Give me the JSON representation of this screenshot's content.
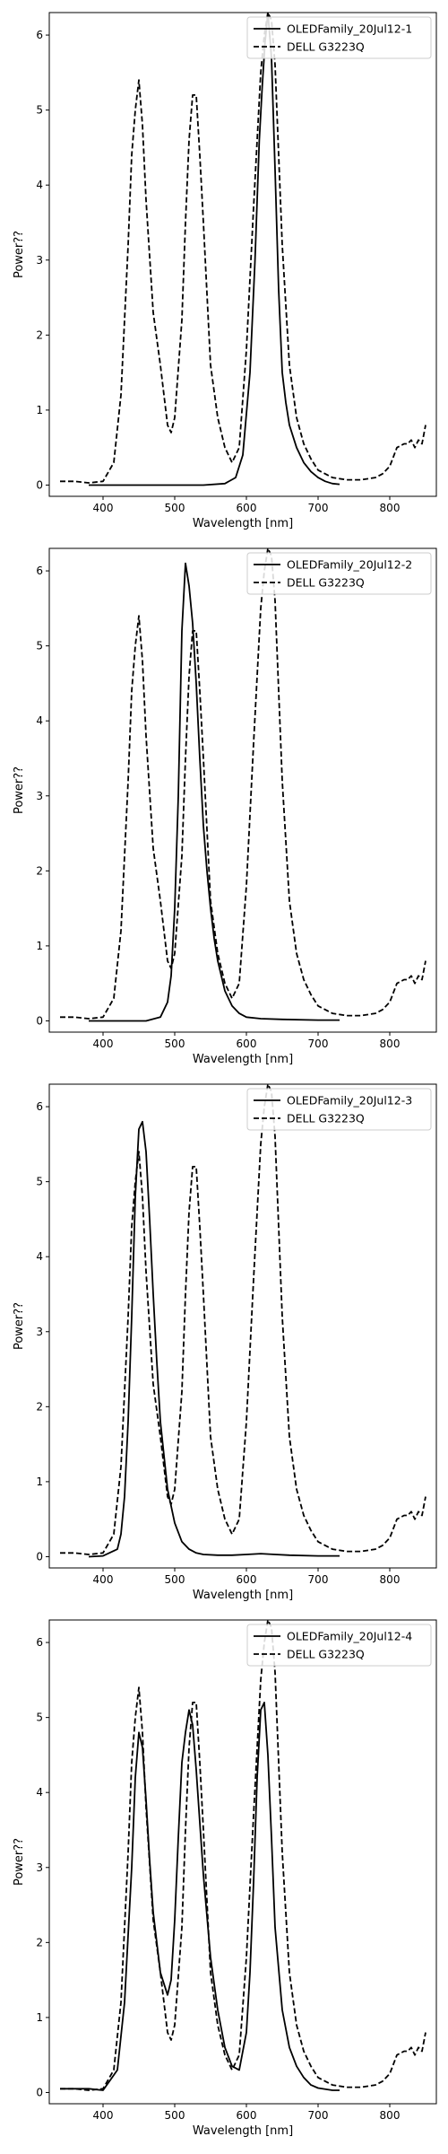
{
  "chart_data": [
    {
      "type": "line",
      "xlabel": "Wavelength [nm]",
      "ylabel": "Power??",
      "xlim": [
        325,
        865
      ],
      "ylim": [
        -0.15,
        6.3
      ],
      "xticks": [
        400,
        500,
        600,
        700,
        800
      ],
      "yticks": [
        0,
        1,
        2,
        3,
        4,
        5,
        6
      ],
      "legend_position": "top-right",
      "grid": false,
      "series": [
        {
          "name": "OLEDFamily_20Jul12-1",
          "style": "solid",
          "color": "#000000",
          "x": [
            380,
            420,
            460,
            500,
            540,
            570,
            585,
            595,
            605,
            612,
            618,
            622,
            626,
            630,
            635,
            640,
            645,
            650,
            655,
            660,
            670,
            680,
            690,
            700,
            710,
            720,
            730
          ],
          "y": [
            0,
            0,
            0,
            0,
            0,
            0.02,
            0.1,
            0.4,
            1.5,
            3.0,
            4.6,
            5.3,
            5.9,
            6.3,
            5.7,
            4.2,
            2.6,
            1.5,
            1.1,
            0.8,
            0.5,
            0.3,
            0.18,
            0.1,
            0.05,
            0.02,
            0.01
          ]
        },
        {
          "name": "DELL G3223Q",
          "style": "dashed",
          "color": "#000000",
          "x": [
            340,
            360,
            380,
            400,
            415,
            425,
            435,
            440,
            445,
            450,
            455,
            460,
            470,
            480,
            490,
            495,
            500,
            510,
            515,
            520,
            525,
            530,
            535,
            540,
            550,
            560,
            570,
            575,
            580,
            590,
            600,
            610,
            620,
            625,
            630,
            635,
            640,
            645,
            650,
            660,
            670,
            680,
            690,
            700,
            720,
            740,
            760,
            780,
            790,
            800,
            810,
            820,
            825,
            830,
            835,
            840,
            845,
            850
          ],
          "y": [
            0.05,
            0.05,
            0.03,
            0.05,
            0.3,
            1.2,
            3.2,
            4.4,
            5.0,
            5.4,
            4.8,
            3.8,
            2.3,
            1.6,
            0.8,
            0.7,
            0.9,
            2.2,
            3.5,
            4.6,
            5.2,
            5.2,
            4.4,
            3.5,
            1.6,
            0.9,
            0.5,
            0.4,
            0.3,
            0.5,
            1.8,
            3.7,
            5.5,
            6.0,
            6.3,
            6.2,
            5.6,
            4.4,
            3.2,
            1.6,
            0.9,
            0.55,
            0.35,
            0.2,
            0.1,
            0.07,
            0.07,
            0.1,
            0.15,
            0.25,
            0.5,
            0.55,
            0.55,
            0.6,
            0.5,
            0.6,
            0.55,
            0.8
          ]
        }
      ]
    },
    {
      "type": "line",
      "xlabel": "Wavelength [nm]",
      "ylabel": "Power??",
      "xlim": [
        325,
        865
      ],
      "ylim": [
        -0.15,
        6.3
      ],
      "xticks": [
        400,
        500,
        600,
        700,
        800
      ],
      "yticks": [
        0,
        1,
        2,
        3,
        4,
        5,
        6
      ],
      "legend_position": "top-right",
      "grid": false,
      "series": [
        {
          "name": "OLEDFamily_20Jul12-2",
          "style": "solid",
          "color": "#000000",
          "x": [
            380,
            420,
            460,
            480,
            490,
            495,
            500,
            505,
            510,
            515,
            520,
            525,
            530,
            535,
            540,
            545,
            550,
            555,
            560,
            570,
            580,
            590,
            600,
            620,
            650,
            700,
            730
          ],
          "y": [
            0,
            0,
            0,
            0.05,
            0.25,
            0.6,
            1.5,
            3.0,
            5.2,
            6.1,
            5.8,
            5.3,
            4.5,
            3.5,
            2.6,
            2.0,
            1.5,
            1.1,
            0.8,
            0.4,
            0.2,
            0.1,
            0.05,
            0.03,
            0.02,
            0.01,
            0.01
          ]
        },
        {
          "name": "DELL G3223Q",
          "style": "dashed",
          "color": "#000000",
          "x": [
            340,
            360,
            380,
            400,
            415,
            425,
            435,
            440,
            445,
            450,
            455,
            460,
            470,
            480,
            490,
            495,
            500,
            510,
            515,
            520,
            525,
            530,
            535,
            540,
            550,
            560,
            570,
            575,
            580,
            590,
            600,
            610,
            620,
            625,
            630,
            635,
            640,
            645,
            650,
            660,
            670,
            680,
            690,
            700,
            720,
            740,
            760,
            780,
            790,
            800,
            810,
            820,
            825,
            830,
            835,
            840,
            845,
            850
          ],
          "y": [
            0.05,
            0.05,
            0.03,
            0.05,
            0.3,
            1.2,
            3.2,
            4.4,
            5.0,
            5.4,
            4.8,
            3.8,
            2.3,
            1.6,
            0.8,
            0.7,
            0.9,
            2.2,
            3.5,
            4.6,
            5.2,
            5.2,
            4.4,
            3.5,
            1.6,
            0.9,
            0.5,
            0.4,
            0.3,
            0.5,
            1.8,
            3.7,
            5.5,
            6.0,
            6.3,
            6.2,
            5.6,
            4.4,
            3.2,
            1.6,
            0.9,
            0.55,
            0.35,
            0.2,
            0.1,
            0.07,
            0.07,
            0.1,
            0.15,
            0.25,
            0.5,
            0.55,
            0.55,
            0.6,
            0.5,
            0.6,
            0.55,
            0.8
          ]
        }
      ]
    },
    {
      "type": "line",
      "xlabel": "Wavelength [nm]",
      "ylabel": "Power??",
      "xlim": [
        325,
        865
      ],
      "ylim": [
        -0.15,
        6.3
      ],
      "xticks": [
        400,
        500,
        600,
        700,
        800
      ],
      "yticks": [
        0,
        1,
        2,
        3,
        4,
        5,
        6
      ],
      "legend_position": "top-right",
      "grid": false,
      "series": [
        {
          "name": "OLEDFamily_20Jul12-3",
          "style": "solid",
          "color": "#000000",
          "x": [
            380,
            400,
            420,
            425,
            430,
            435,
            440,
            445,
            450,
            455,
            460,
            465,
            470,
            475,
            480,
            490,
            500,
            510,
            520,
            530,
            540,
            560,
            580,
            600,
            620,
            640,
            660,
            700,
            730
          ],
          "y": [
            0,
            0.01,
            0.1,
            0.3,
            0.8,
            1.8,
            3.2,
            4.8,
            5.7,
            5.8,
            5.4,
            4.5,
            3.5,
            2.6,
            1.8,
            0.9,
            0.45,
            0.2,
            0.1,
            0.05,
            0.03,
            0.02,
            0.02,
            0.03,
            0.04,
            0.03,
            0.02,
            0.01,
            0.01
          ]
        },
        {
          "name": "DELL G3223Q",
          "style": "dashed",
          "color": "#000000",
          "x": [
            340,
            360,
            380,
            400,
            415,
            425,
            435,
            440,
            445,
            450,
            455,
            460,
            470,
            480,
            490,
            495,
            500,
            510,
            515,
            520,
            525,
            530,
            535,
            540,
            550,
            560,
            570,
            575,
            580,
            590,
            600,
            610,
            620,
            625,
            630,
            635,
            640,
            645,
            650,
            660,
            670,
            680,
            690,
            700,
            720,
            740,
            760,
            780,
            790,
            800,
            810,
            820,
            825,
            830,
            835,
            840,
            845,
            850
          ],
          "y": [
            0.05,
            0.05,
            0.03,
            0.05,
            0.3,
            1.2,
            3.2,
            4.4,
            5.0,
            5.4,
            4.8,
            3.8,
            2.3,
            1.6,
            0.8,
            0.7,
            0.9,
            2.2,
            3.5,
            4.6,
            5.2,
            5.2,
            4.4,
            3.5,
            1.6,
            0.9,
            0.5,
            0.4,
            0.3,
            0.5,
            1.8,
            3.7,
            5.5,
            6.0,
            6.3,
            6.2,
            5.6,
            4.4,
            3.2,
            1.6,
            0.9,
            0.55,
            0.35,
            0.2,
            0.1,
            0.07,
            0.07,
            0.1,
            0.15,
            0.25,
            0.5,
            0.55,
            0.55,
            0.6,
            0.5,
            0.6,
            0.55,
            0.8
          ]
        }
      ]
    },
    {
      "type": "line",
      "xlabel": "Wavelength [nm]",
      "ylabel": "Power??",
      "xlim": [
        325,
        865
      ],
      "ylim": [
        -0.15,
        6.3
      ],
      "xticks": [
        400,
        500,
        600,
        700,
        800
      ],
      "yticks": [
        0,
        1,
        2,
        3,
        4,
        5,
        6
      ],
      "legend_position": "top-right",
      "grid": false,
      "series": [
        {
          "name": "OLEDFamily_20Jul12-4",
          "style": "solid",
          "color": "#000000",
          "x": [
            340,
            380,
            400,
            420,
            430,
            440,
            445,
            450,
            455,
            460,
            465,
            470,
            480,
            490,
            495,
            500,
            505,
            510,
            515,
            520,
            525,
            530,
            540,
            550,
            560,
            570,
            580,
            590,
            600,
            605,
            610,
            615,
            620,
            625,
            630,
            635,
            640,
            650,
            660,
            670,
            680,
            690,
            700,
            720,
            730
          ],
          "y": [
            0.05,
            0.05,
            0.03,
            0.3,
            1.2,
            3.0,
            4.2,
            4.8,
            4.6,
            3.9,
            3.1,
            2.4,
            1.6,
            1.3,
            1.5,
            2.3,
            3.4,
            4.4,
            4.8,
            5.1,
            4.9,
            4.3,
            2.9,
            1.8,
            1.1,
            0.6,
            0.35,
            0.3,
            0.8,
            1.6,
            2.8,
            4.2,
            5.1,
            5.2,
            4.5,
            3.4,
            2.2,
            1.1,
            0.6,
            0.35,
            0.2,
            0.1,
            0.06,
            0.03,
            0.03
          ]
        },
        {
          "name": "DELL G3223Q",
          "style": "dashed",
          "color": "#000000",
          "x": [
            340,
            360,
            380,
            400,
            415,
            425,
            435,
            440,
            445,
            450,
            455,
            460,
            470,
            480,
            490,
            495,
            500,
            510,
            515,
            520,
            525,
            530,
            535,
            540,
            550,
            560,
            570,
            575,
            580,
            590,
            600,
            610,
            620,
            625,
            630,
            635,
            640,
            645,
            650,
            660,
            670,
            680,
            690,
            700,
            720,
            740,
            760,
            780,
            790,
            800,
            810,
            820,
            825,
            830,
            835,
            840,
            845,
            850
          ],
          "y": [
            0.05,
            0.05,
            0.03,
            0.05,
            0.3,
            1.2,
            3.2,
            4.4,
            5.0,
            5.4,
            4.8,
            3.8,
            2.3,
            1.6,
            0.8,
            0.7,
            0.9,
            2.2,
            3.5,
            4.6,
            5.2,
            5.2,
            4.4,
            3.5,
            1.6,
            0.9,
            0.5,
            0.4,
            0.3,
            0.5,
            1.8,
            3.7,
            5.5,
            6.0,
            6.3,
            6.2,
            5.6,
            4.4,
            3.2,
            1.6,
            0.9,
            0.55,
            0.35,
            0.2,
            0.1,
            0.07,
            0.07,
            0.1,
            0.15,
            0.25,
            0.5,
            0.55,
            0.55,
            0.6,
            0.5,
            0.6,
            0.55,
            0.8
          ]
        }
      ]
    }
  ]
}
